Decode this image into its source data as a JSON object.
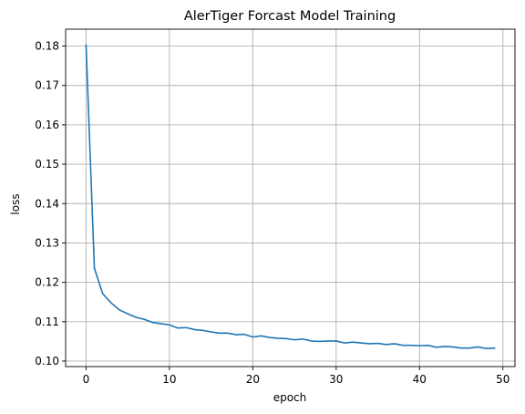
{
  "chart_data": {
    "type": "line",
    "title": "AlerTiger Forcast Model Training",
    "xlabel": "epoch",
    "ylabel": "loss",
    "xlim": [
      -2.45,
      51.45
    ],
    "ylim": [
      0.0986,
      0.1843
    ],
    "xticks": [
      0,
      10,
      20,
      30,
      40,
      50
    ],
    "xtick_labels": [
      "0",
      "10",
      "20",
      "30",
      "40",
      "50"
    ],
    "yticks": [
      0.1,
      0.11,
      0.12,
      0.13,
      0.14,
      0.15,
      0.16,
      0.17,
      0.18
    ],
    "ytick_labels": [
      "0.10",
      "0.11",
      "0.12",
      "0.13",
      "0.14",
      "0.15",
      "0.16",
      "0.17",
      "0.18"
    ],
    "grid": true,
    "series": [
      {
        "color": "#1f77b4",
        "x": [
          0,
          1,
          2,
          3,
          4,
          5,
          6,
          7,
          8,
          9,
          10,
          11,
          12,
          13,
          14,
          15,
          16,
          17,
          18,
          19,
          20,
          21,
          22,
          23,
          24,
          25,
          26,
          27,
          28,
          29,
          30,
          31,
          32,
          33,
          34,
          35,
          36,
          37,
          38,
          39,
          40,
          41,
          42,
          43,
          44,
          45,
          46,
          47,
          48,
          49
        ],
        "y": [
          0.1803,
          0.1236,
          0.1171,
          0.1148,
          0.113,
          0.112,
          0.1111,
          0.1106,
          0.1098,
          0.1095,
          0.1092,
          0.1084,
          0.1085,
          0.108,
          0.1078,
          0.1074,
          0.1071,
          0.1071,
          0.1067,
          0.1068,
          0.1061,
          0.1064,
          0.106,
          0.1058,
          0.1057,
          0.1054,
          0.1056,
          0.1051,
          0.105,
          0.1051,
          0.1051,
          0.1046,
          0.1048,
          0.1046,
          0.1044,
          0.1045,
          0.1042,
          0.1044,
          0.104,
          0.104,
          0.1039,
          0.104,
          0.1035,
          0.1037,
          0.1036,
          0.1033,
          0.1033,
          0.1036,
          0.1032,
          0.1033
        ]
      }
    ]
  }
}
